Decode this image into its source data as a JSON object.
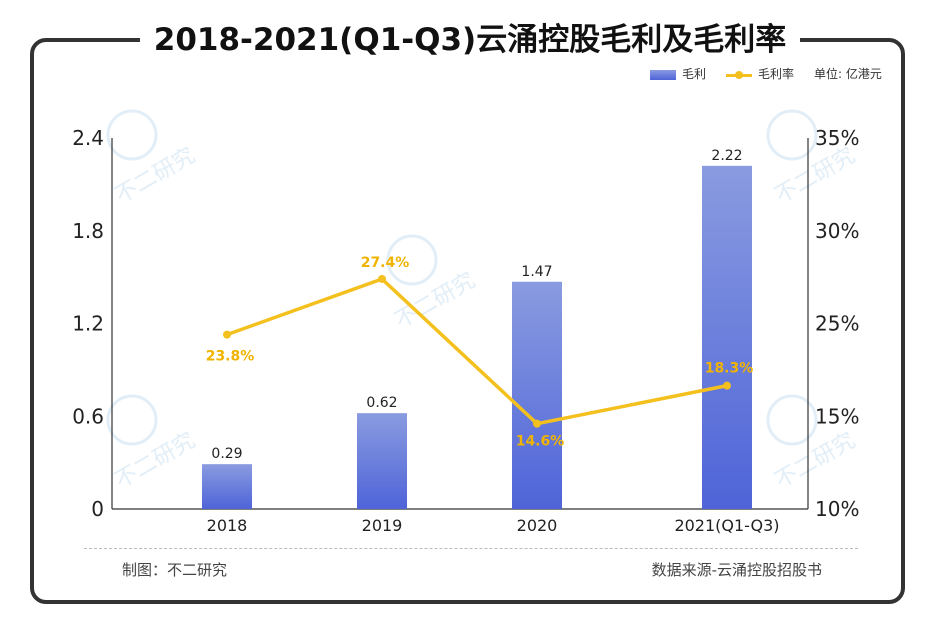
{
  "title": "2018-2021(Q1-Q3)云涌控股毛利及毛利率",
  "legend": {
    "bar_label": "毛利",
    "line_label": "毛利率",
    "unit": "单位: 亿港元"
  },
  "footer": {
    "made_by": "制图：不二研究",
    "source": "数据来源-云涌控股招股书"
  },
  "watermark": "不二研究",
  "colors": {
    "bar_top": "#8a9be0",
    "bar_bottom": "#4e64d8",
    "line": "#f4c01d",
    "line_label": "#f0b400"
  },
  "chart_data": {
    "type": "bar+line",
    "categories": [
      "2018",
      "2019",
      "2020",
      "2021(Q1-Q3)"
    ],
    "series": [
      {
        "name": "毛利",
        "type": "bar",
        "axis": "left",
        "values": [
          0.29,
          0.62,
          1.47,
          2.22
        ],
        "labels": [
          "0.29",
          "0.62",
          "1.47",
          "2.22"
        ]
      },
      {
        "name": "毛利率",
        "type": "line",
        "axis": "right",
        "values": [
          23.8,
          27.4,
          14.6,
          18.3
        ],
        "labels": [
          "23.8%",
          "27.4%",
          "14.6%",
          "18.3%"
        ]
      }
    ],
    "left_axis": {
      "range": [
        0,
        2.4
      ],
      "ticks": [
        "0",
        "0.6",
        "1.2",
        "1.8",
        "2.4"
      ],
      "tick_values": [
        0,
        0.6,
        1.2,
        1.8,
        2.4
      ]
    },
    "right_axis": {
      "ticks": [
        "10%",
        "15%",
        "25%",
        "30%",
        "35%"
      ],
      "tick_values": [
        10,
        15,
        25,
        30,
        35
      ]
    }
  }
}
